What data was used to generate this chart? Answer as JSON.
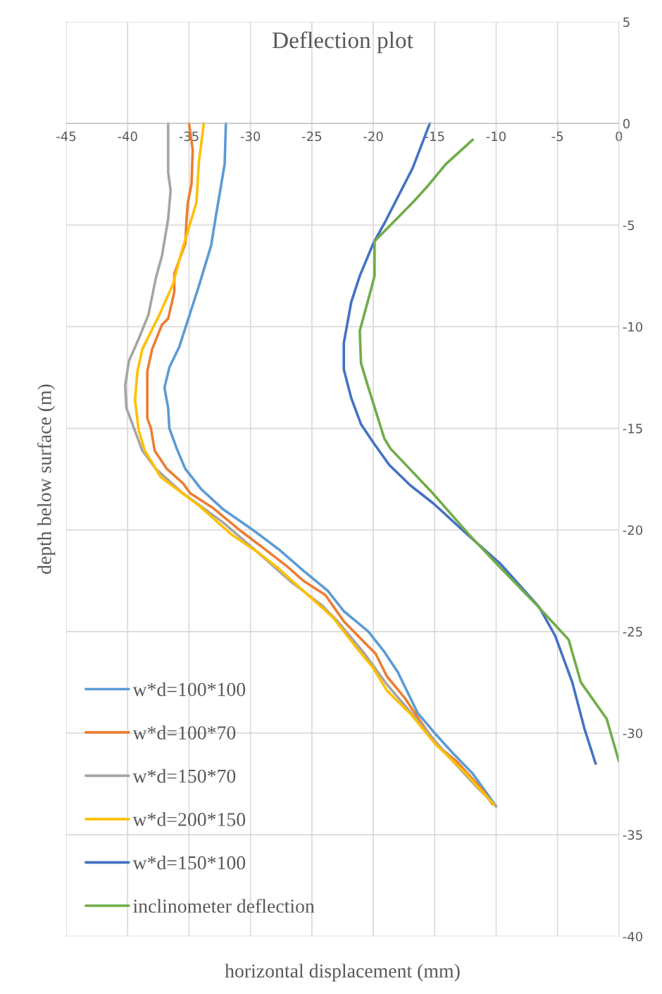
{
  "chart_data": {
    "type": "line",
    "title": "Deflection plot",
    "xlabel": "horizontal displacement (mm)",
    "ylabel": "depth below surface (m)",
    "xlim": [
      -45,
      0
    ],
    "xticks": [
      -45,
      -40,
      -35,
      -30,
      -25,
      -20,
      -15,
      -10,
      -5,
      0
    ],
    "ylim": [
      -40,
      5
    ],
    "yticks": [
      -40,
      -35,
      -30,
      -25,
      -20,
      -15,
      -10,
      -5,
      0,
      5
    ],
    "grid": true,
    "legend": "bottom left",
    "marker": "none",
    "line_style": "solid",
    "series": [
      {
        "name": "w*d=100*100",
        "color": "#5b9bd5",
        "x": [
          -32.0,
          -32.1,
          -32.8,
          -33.2,
          -34.2,
          -35.0,
          -35.8,
          -36.6,
          -37.0,
          -36.7,
          -36.6,
          -36.0,
          -35.3,
          -34.0,
          -32.2,
          -29.8,
          -27.6,
          -25.7,
          -23.7,
          -22.4,
          -20.4,
          -19.1,
          -18.0,
          -17.2,
          -16.4,
          -15.0,
          -13.5,
          -11.9,
          -10.0
        ],
        "values": [
          0,
          -2,
          -4.5,
          -6,
          -8,
          -9.5,
          -11,
          -12,
          -13,
          -14,
          -15,
          -16,
          -17,
          -18,
          -19,
          -20,
          -21,
          -22,
          -23,
          -24,
          -25,
          -26,
          -27,
          -28,
          -29,
          -30,
          -31,
          -32,
          -33.6
        ]
      },
      {
        "name": "w*d=100*70",
        "color": "#ed7d31",
        "x": [
          -35.0,
          -34.7,
          -34.8,
          -35.1,
          -35.2,
          -35.3,
          -36.2,
          -36.2,
          -36.7,
          -37.2,
          -38.0,
          -38.4,
          -38.4,
          -38.1,
          -37.8,
          -36.8,
          -35.5,
          -34.9,
          -33.1,
          -30.9,
          -28.5,
          -27.0,
          -25.7,
          -23.9,
          -22.4,
          -19.8,
          -18.9,
          -17.4,
          -16.3,
          -14.8,
          -13.2,
          -11.1,
          -10.3
        ],
        "values": [
          0,
          -1.3,
          -3.0,
          -3.9,
          -4.7,
          -5.9,
          -7.4,
          -8.3,
          -9.6,
          -9.9,
          -11.1,
          -12.2,
          -14.5,
          -15.0,
          -16.1,
          -17.0,
          -17.7,
          -18.2,
          -18.9,
          -20.0,
          -21.1,
          -21.8,
          -22.5,
          -23.2,
          -24.5,
          -26.1,
          -27.2,
          -28.3,
          -29.3,
          -30.6,
          -31.4,
          -32.8,
          -33.5
        ]
      },
      {
        "name": "w*d=150*70",
        "color": "#a5a5a5",
        "x": [
          -36.7,
          -36.7,
          -36.5,
          -36.7,
          -37.2,
          -37.7,
          -38.3,
          -39.1,
          -39.9,
          -40.2,
          -40.1,
          -39.6,
          -38.8,
          -37.7,
          -35.5,
          -32.3,
          -29.6,
          -28.1,
          -26.8,
          -24.2,
          -22.9,
          -20.7,
          -18.9,
          -16.5,
          -14.1,
          -11.5,
          -10.0
        ],
        "values": [
          0,
          -2.4,
          -3.3,
          -4.7,
          -6.5,
          -7.6,
          -9.4,
          -10.6,
          -11.7,
          -12.9,
          -14.0,
          -14.8,
          -16.1,
          -17.0,
          -18.2,
          -19.6,
          -21.0,
          -21.8,
          -22.5,
          -23.7,
          -24.5,
          -26.1,
          -27.6,
          -29.3,
          -31.0,
          -32.7,
          -33.6
        ]
      },
      {
        "name": "w*d=200*150",
        "color": "#ffc000",
        "x": [
          -33.8,
          -34.2,
          -34.4,
          -34.9,
          -35.7,
          -36.3,
          -37.4,
          -38.8,
          -39.2,
          -39.4,
          -39.1,
          -38.6,
          -37.3,
          -34.2,
          -31.6,
          -29.4,
          -27.7,
          -26.8,
          -23.3,
          -21.5,
          -20.0,
          -18.9,
          -16.9,
          -15.0,
          -12.6,
          -10.2
        ],
        "values": [
          0,
          -1.9,
          -3.9,
          -4.9,
          -6.5,
          -7.9,
          -9.4,
          -11.1,
          -12.2,
          -13.6,
          -15.1,
          -16.1,
          -17.4,
          -18.8,
          -20.2,
          -21.1,
          -21.9,
          -22.4,
          -24.3,
          -25.7,
          -26.8,
          -27.9,
          -29.1,
          -30.5,
          -31.9,
          -33.5
        ]
      },
      {
        "name": "w*d=150*100",
        "color": "#4472c4",
        "x": [
          -15.4,
          -16.8,
          -19.0,
          -20.0,
          -21.1,
          -21.8,
          -22.4,
          -22.4,
          -21.8,
          -21.0,
          -20.0,
          -18.7,
          -17.0,
          -15.1,
          -12.2,
          -9.6,
          -6.5,
          -5.2,
          -3.8,
          -2.8,
          -1.9
        ],
        "values": [
          0,
          -2.2,
          -4.8,
          -5.9,
          -7.5,
          -8.8,
          -10.8,
          -12.1,
          -13.5,
          -14.8,
          -15.7,
          -16.8,
          -17.8,
          -18.7,
          -20.3,
          -21.7,
          -23.8,
          -25.2,
          -27.5,
          -29.8,
          -31.5
        ]
      },
      {
        "name": "inclinometer deflection",
        "color": "#70ad47",
        "x": [
          -11.9,
          -14.1,
          -15.6,
          -16.8,
          -19.9,
          -19.9,
          -20.2,
          -21.1,
          -21.0,
          -20.5,
          -19.1,
          -18.6,
          -15.3,
          -12.1,
          -9.9,
          -6.7,
          -4.1,
          -3.1,
          -1.0,
          0.0
        ],
        "values": [
          -0.8,
          -2.0,
          -3.1,
          -3.9,
          -5.8,
          -7.5,
          -8.2,
          -10.2,
          -11.8,
          -12.8,
          -15.5,
          -16.0,
          -18.1,
          -20.3,
          -21.7,
          -23.7,
          -25.4,
          -27.5,
          -29.3,
          -31.4
        ]
      }
    ]
  }
}
